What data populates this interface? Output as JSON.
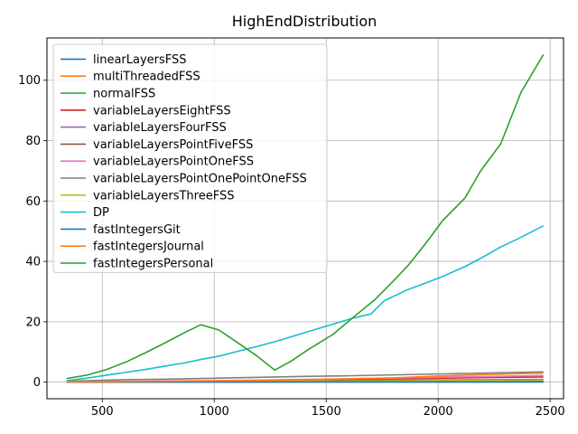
{
  "chart_data": {
    "type": "line",
    "title": "HighEndDistribution",
    "xlabel": "",
    "ylabel": "",
    "xlim": [
      253,
      2560
    ],
    "ylim": [
      -5.5,
      114
    ],
    "xticks": [
      500,
      1000,
      1500,
      2000,
      2500
    ],
    "yticks": [
      0,
      20,
      40,
      60,
      80,
      100
    ],
    "grid": true,
    "legend_position": "upper-left",
    "series": [
      {
        "name": "linearLayersFSS",
        "color": "#1f77b4",
        "x": [
          341,
          1000,
          1500,
          2000,
          2470
        ],
        "y": [
          0.02,
          0.03,
          0.04,
          0.05,
          0.06
        ]
      },
      {
        "name": "multiThreadedFSS",
        "color": "#ff7f0e",
        "x": [
          341,
          1000,
          1500,
          2000,
          2470
        ],
        "y": [
          0.05,
          0.08,
          0.1,
          0.12,
          0.15
        ]
      },
      {
        "name": "normalFSS",
        "color": "#2ca02c",
        "x": [
          341,
          1000,
          1500,
          2000,
          2470
        ],
        "y": [
          0.1,
          0.15,
          0.2,
          0.25,
          0.3
        ]
      },
      {
        "name": "variableLayersEightFSS",
        "color": "#d62728",
        "x": [
          341,
          600,
          800,
          1000,
          1200,
          1400,
          1600,
          1800,
          2000,
          2200,
          2470
        ],
        "y": [
          0.1,
          0.2,
          0.3,
          0.4,
          0.5,
          0.7,
          0.9,
          1.1,
          1.3,
          1.5,
          1.7
        ]
      },
      {
        "name": "variableLayersFourFSS",
        "color": "#9467bd",
        "x": [
          341,
          1000,
          1500,
          2000,
          2470
        ],
        "y": [
          0.05,
          0.1,
          0.15,
          0.2,
          0.3
        ]
      },
      {
        "name": "variableLayersPointFiveFSS",
        "color": "#8c564b",
        "x": [
          341,
          1000,
          1500,
          2000,
          2470
        ],
        "y": [
          0.1,
          0.3,
          0.5,
          0.7,
          0.9
        ]
      },
      {
        "name": "variableLayersPointOneFSS",
        "color": "#e377c2",
        "x": [
          341,
          1000,
          1500,
          2000,
          2470
        ],
        "y": [
          0.1,
          0.5,
          1.0,
          1.6,
          2.2
        ]
      },
      {
        "name": "variableLayersPointOnePointOneFSS",
        "color": "#7f7f7f",
        "x": [
          341,
          600,
          800,
          1000,
          1200,
          1400,
          1600,
          1800,
          2000,
          2200,
          2470
        ],
        "y": [
          0.3,
          0.8,
          1.0,
          1.3,
          1.6,
          1.9,
          2.1,
          2.4,
          2.7,
          3.0,
          3.4
        ]
      },
      {
        "name": "variableLayersThreeFSS",
        "color": "#bcbd22",
        "x": [
          341,
          1000,
          1500,
          2000,
          2470
        ],
        "y": [
          0.05,
          0.2,
          0.35,
          0.5,
          0.7
        ]
      },
      {
        "name": "DP",
        "color": "#17becf",
        "x": [
          341,
          430,
          520,
          610,
          700,
          780,
          870,
          940,
          1020,
          1110,
          1190,
          1280,
          1360,
          1440,
          1530,
          1610,
          1700,
          1760,
          1860,
          1950,
          2020,
          2120,
          2190,
          2280,
          2360,
          2470
        ],
        "y": [
          0.5,
          1.3,
          2.3,
          3.3,
          4.3,
          5.3,
          6.4,
          7.5,
          8.6,
          10.3,
          11.8,
          13.6,
          15.4,
          17.2,
          19.2,
          21.0,
          22.6,
          27.0,
          30.5,
          33.0,
          35.0,
          38.3,
          41.0,
          44.8,
          47.6,
          51.8
        ]
      },
      {
        "name": "fastIntegersGit",
        "color": "#1f77b4",
        "x": [
          341,
          1000,
          1500,
          2000,
          2470
        ],
        "y": [
          0.02,
          0.04,
          0.05,
          0.06,
          0.08
        ]
      },
      {
        "name": "fastIntegersJournal",
        "color": "#ff7f0e",
        "x": [
          341,
          600,
          800,
          1000,
          1200,
          1400,
          1600,
          1800,
          2000,
          2200,
          2470
        ],
        "y": [
          0.1,
          0.2,
          0.3,
          0.4,
          0.5,
          0.8,
          1.1,
          1.4,
          2.0,
          2.5,
          3.0
        ]
      },
      {
        "name": "fastIntegersPersonal",
        "color": "#2ca02c",
        "x": [
          341,
          430,
          520,
          610,
          700,
          780,
          870,
          940,
          1020,
          1110,
          1190,
          1270,
          1340,
          1420,
          1530,
          1610,
          1720,
          1800,
          1870,
          1950,
          2020,
          2120,
          2190,
          2280,
          2370,
          2470
        ],
        "y": [
          1.2,
          2.3,
          4.2,
          6.8,
          10.0,
          13.0,
          16.5,
          19.0,
          17.3,
          12.8,
          8.7,
          4.0,
          6.8,
          10.8,
          15.8,
          20.8,
          27.5,
          33.5,
          39.0,
          46.5,
          53.5,
          61.0,
          70.0,
          79.0,
          96.0,
          108.5
        ]
      }
    ]
  }
}
